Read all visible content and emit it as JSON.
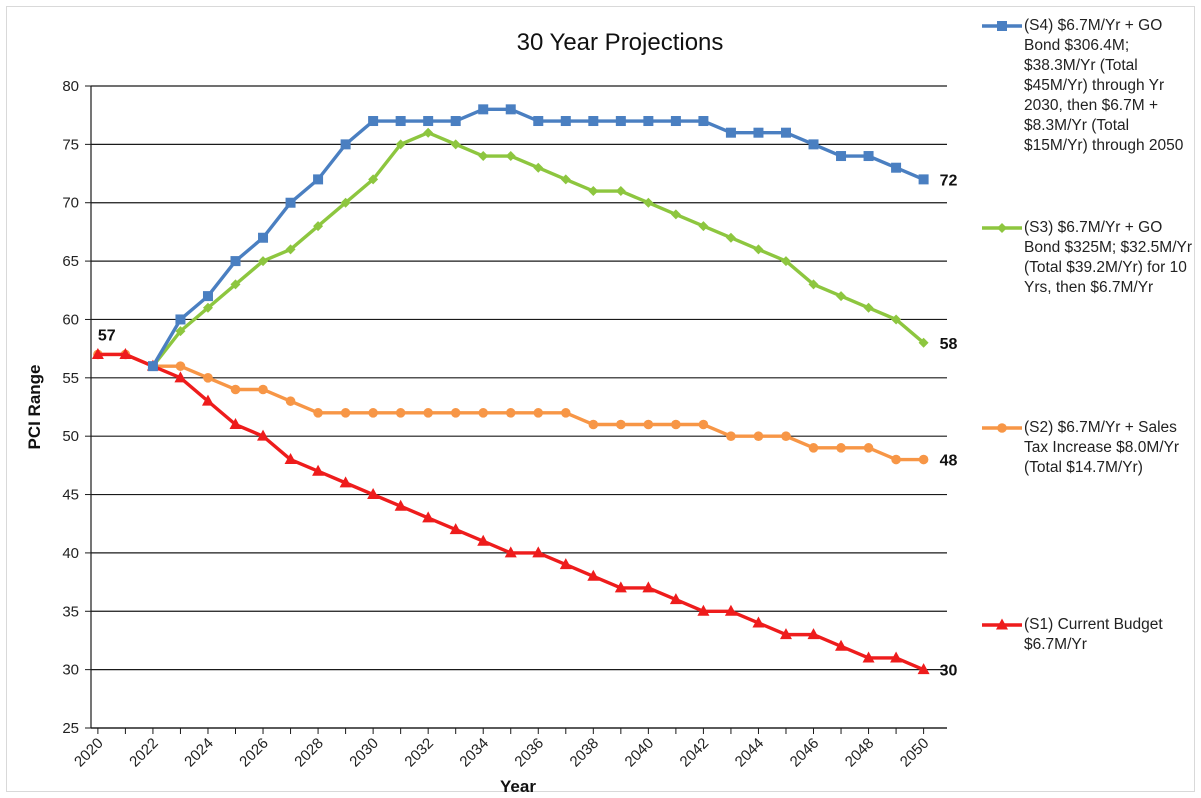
{
  "chart_data": {
    "type": "line",
    "title": "30 Year Projections",
    "xlabel": "Year",
    "ylabel": "PCI Range",
    "ylim": [
      25,
      80
    ],
    "yticks": [
      25,
      30,
      35,
      40,
      45,
      50,
      55,
      60,
      65,
      70,
      75,
      80
    ],
    "xticks": [
      "2020",
      "2022",
      "2024",
      "2026",
      "2028",
      "2030",
      "2032",
      "2034",
      "2036",
      "2038",
      "2040",
      "2042",
      "2044",
      "2046",
      "2048",
      "2050"
    ],
    "grid": "horizontal",
    "legend_position": "right",
    "start_label": "57",
    "series": [
      {
        "name": "(S4) $6.7M/Yr + GO Bond $306.4M; $38.3M/Yr (Total $45M/Yr) through Yr 2030, then $6.7M + $8.3M/Yr (Total $15M/Yr) through 2050",
        "color": "#4a7fc1",
        "marker": "square",
        "end_label": "72",
        "x": [
          2022,
          2023,
          2024,
          2025,
          2026,
          2027,
          2028,
          2029,
          2030,
          2031,
          2032,
          2033,
          2034,
          2035,
          2036,
          2037,
          2038,
          2039,
          2040,
          2041,
          2042,
          2043,
          2044,
          2045,
          2046,
          2047,
          2048,
          2049,
          2050
        ],
        "y": [
          56,
          60,
          62,
          65,
          67,
          70,
          72,
          75,
          77,
          77,
          77,
          77,
          78,
          78,
          77,
          77,
          77,
          77,
          77,
          77,
          77,
          76,
          76,
          76,
          75,
          74,
          74,
          73,
          72
        ]
      },
      {
        "name": "(S3) $6.7M/Yr + GO Bond $325M; $32.5M/Yr (Total $39.2M/Yr) for 10 Yrs, then $6.7M/Yr",
        "color": "#8dc63f",
        "marker": "diamond",
        "end_label": "58",
        "x": [
          2022,
          2023,
          2024,
          2025,
          2026,
          2027,
          2028,
          2029,
          2030,
          2031,
          2032,
          2033,
          2034,
          2035,
          2036,
          2037,
          2038,
          2039,
          2040,
          2041,
          2042,
          2043,
          2044,
          2045,
          2046,
          2047,
          2048,
          2049,
          2050
        ],
        "y": [
          56,
          59,
          61,
          63,
          65,
          66,
          68,
          70,
          72,
          75,
          76,
          75,
          74,
          74,
          73,
          72,
          71,
          71,
          70,
          69,
          68,
          67,
          66,
          65,
          63,
          62,
          61,
          60,
          58
        ]
      },
      {
        "name": "(S2) $6.7M/Yr + Sales Tax Increase $8.0M/Yr (Total $14.7M/Yr)",
        "color": "#f79646",
        "marker": "circle",
        "end_label": "48",
        "x": [
          2020,
          2021,
          2022,
          2023,
          2024,
          2025,
          2026,
          2027,
          2028,
          2029,
          2030,
          2031,
          2032,
          2033,
          2034,
          2035,
          2036,
          2037,
          2038,
          2039,
          2040,
          2041,
          2042,
          2043,
          2044,
          2045,
          2046,
          2047,
          2048,
          2049,
          2050
        ],
        "y": [
          57,
          57,
          56,
          56,
          55,
          54,
          54,
          53,
          52,
          52,
          52,
          52,
          52,
          52,
          52,
          52,
          52,
          52,
          51,
          51,
          51,
          51,
          51,
          50,
          50,
          50,
          49,
          49,
          49,
          48,
          48
        ]
      },
      {
        "name": "(S1) Current Budget $6.7M/Yr",
        "color": "#ee1c1c",
        "marker": "triangle",
        "end_label": "30",
        "x": [
          2020,
          2021,
          2022,
          2023,
          2024,
          2025,
          2026,
          2027,
          2028,
          2029,
          2030,
          2031,
          2032,
          2033,
          2034,
          2035,
          2036,
          2037,
          2038,
          2039,
          2040,
          2041,
          2042,
          2043,
          2044,
          2045,
          2046,
          2047,
          2048,
          2049,
          2050
        ],
        "y": [
          57,
          57,
          56,
          55,
          53,
          51,
          50,
          48,
          47,
          46,
          45,
          44,
          43,
          42,
          41,
          40,
          40,
          39,
          38,
          37,
          37,
          36,
          35,
          35,
          34,
          33,
          33,
          32,
          31,
          31,
          30
        ]
      }
    ]
  }
}
